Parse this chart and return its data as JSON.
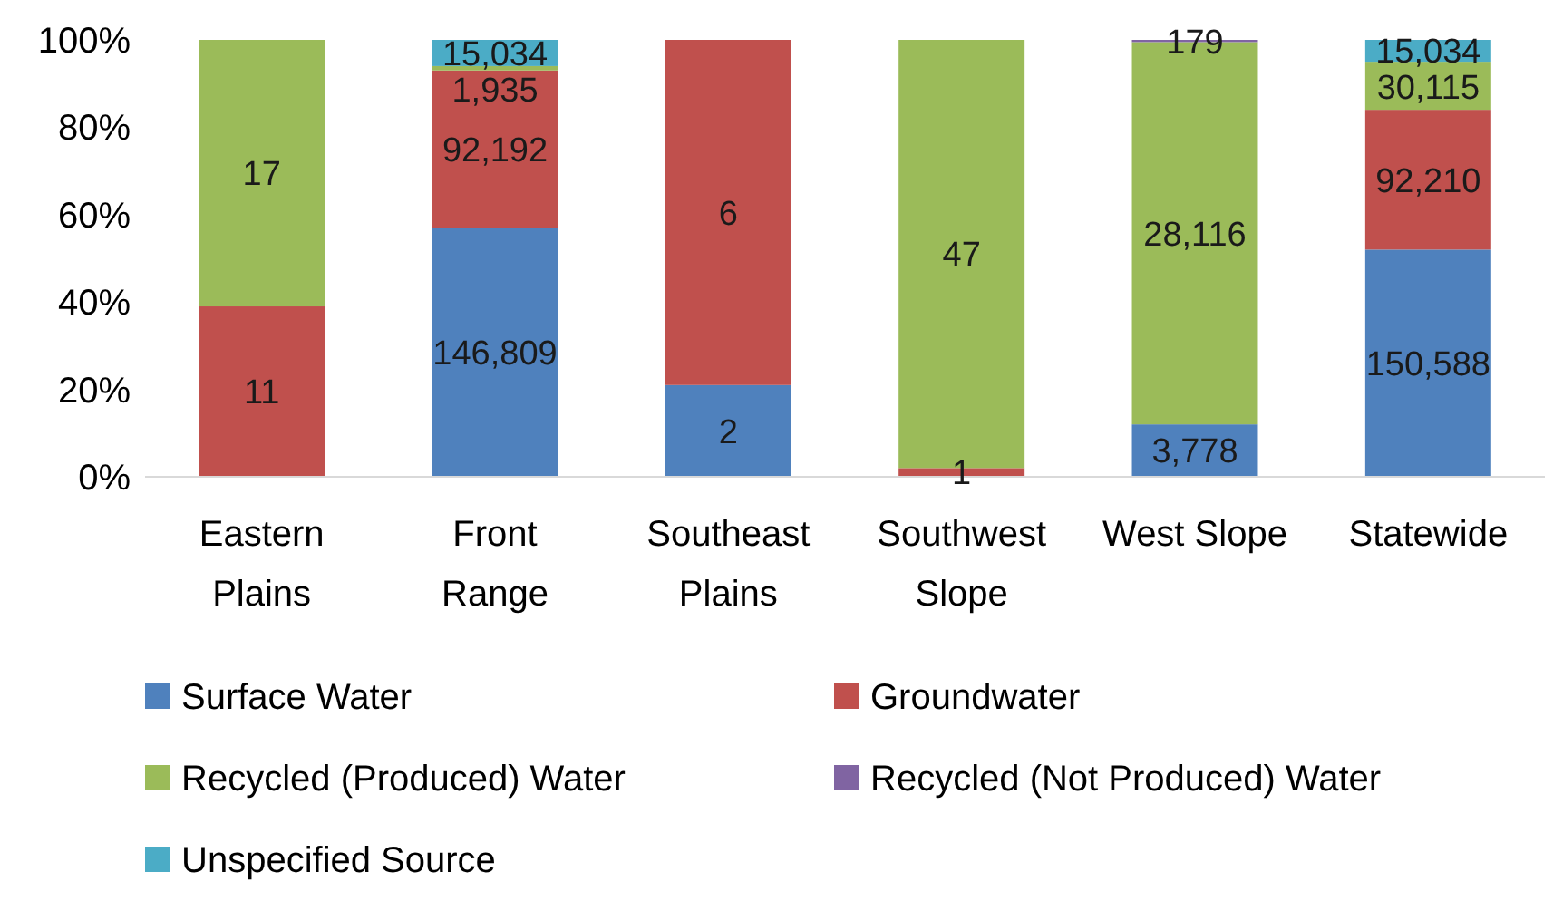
{
  "chart_data": {
    "type": "bar",
    "stacked": true,
    "categories": [
      "Eastern Plains",
      "Front Range",
      "Southeast Plains",
      "Southwest Slope",
      "West Slope",
      "Statewide"
    ],
    "ylim": [
      0,
      100
    ],
    "yticks": [
      {
        "value": 0,
        "label": "0%"
      },
      {
        "value": 20,
        "label": "20%"
      },
      {
        "value": 40,
        "label": "40%"
      },
      {
        "value": 60,
        "label": "60%"
      },
      {
        "value": 80,
        "label": "80%"
      },
      {
        "value": 100,
        "label": "100%"
      }
    ],
    "legend": "bottom",
    "series": [
      {
        "name": "Surface Water",
        "color": "#4f81bd",
        "values": [
          null,
          57,
          21,
          null,
          12,
          52
        ]
      },
      {
        "name": "Groundwater",
        "color": "#c0504d",
        "values": [
          39,
          36,
          79,
          2,
          null,
          32
        ]
      },
      {
        "name": "Recycled (Produced) Water",
        "color": "#9bbb59",
        "values": [
          61,
          1,
          null,
          98,
          87.5,
          11
        ]
      },
      {
        "name": "Recycled (Not Produced) Water",
        "color": "#8064a2",
        "values": [
          null,
          null,
          null,
          null,
          0.5,
          null
        ]
      },
      {
        "name": "Unspecified Source",
        "color": "#4bacc6",
        "values": [
          null,
          6,
          null,
          null,
          null,
          5
        ]
      }
    ],
    "annotations": [
      "11",
      "17",
      "146,809",
      "92,192",
      "1,935",
      "15,034",
      "2",
      "6",
      "1",
      "47",
      "3,778",
      "28,116",
      "179",
      "150,588",
      "92,210",
      "30,115",
      "15,034"
    ]
  }
}
